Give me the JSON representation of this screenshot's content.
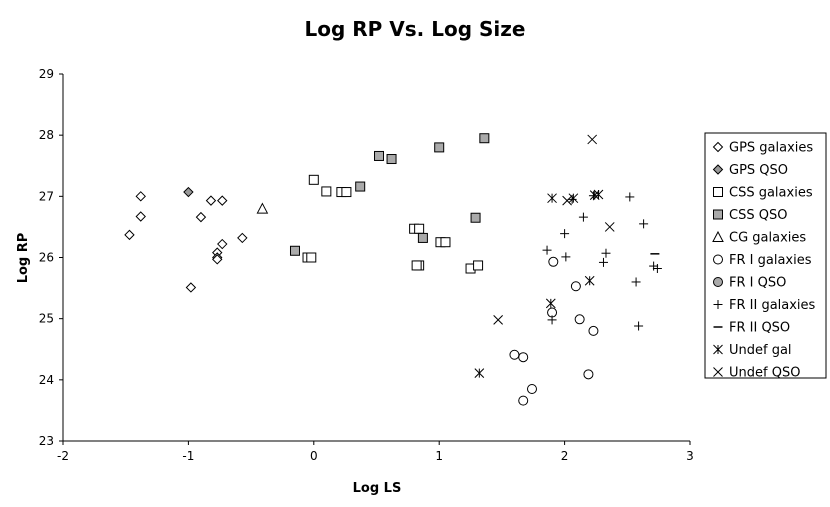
{
  "chart_data": {
    "type": "scatter",
    "title": "Log RP Vs. Log Size",
    "xlabel": "Log LS",
    "ylabel": "Log RP",
    "xlim": [
      -2,
      3
    ],
    "ylim": [
      23,
      29
    ],
    "xticks": [
      -2,
      -1,
      0,
      1,
      2,
      3
    ],
    "yticks": [
      23,
      24,
      25,
      26,
      27,
      28,
      29
    ],
    "grid": false,
    "legend_position": "right",
    "series": [
      {
        "name": "GPS galaxies",
        "marker": "diamond-open",
        "color": "#000000",
        "points": [
          [
            -1.47,
            26.37
          ],
          [
            -1.38,
            27.0
          ],
          [
            -1.38,
            26.67
          ],
          [
            -0.9,
            26.66
          ],
          [
            -0.82,
            26.93
          ],
          [
            -0.73,
            26.93
          ],
          [
            -0.73,
            26.22
          ],
          [
            -0.77,
            26.08
          ],
          [
            -0.77,
            26.0
          ],
          [
            -0.77,
            25.97
          ],
          [
            -0.57,
            26.32
          ],
          [
            -0.98,
            25.51
          ]
        ]
      },
      {
        "name": "GPS QSO",
        "marker": "diamond-filled",
        "color": "#999999",
        "points": [
          [
            -1.0,
            27.07
          ]
        ]
      },
      {
        "name": "CSS galaxies",
        "marker": "square-open",
        "color": "#000000",
        "points": [
          [
            0.0,
            27.27
          ],
          [
            0.1,
            27.08
          ],
          [
            0.22,
            27.07
          ],
          [
            0.26,
            27.07
          ],
          [
            -0.05,
            26.0
          ],
          [
            -0.02,
            26.0
          ],
          [
            0.8,
            26.47
          ],
          [
            0.84,
            26.47
          ],
          [
            0.84,
            25.87
          ],
          [
            0.82,
            25.87
          ],
          [
            1.01,
            26.25
          ],
          [
            1.05,
            26.25
          ],
          [
            1.25,
            25.82
          ],
          [
            1.31,
            25.87
          ]
        ]
      },
      {
        "name": "CSS QSO",
        "marker": "square-filled",
        "color": "#aaaaaa",
        "points": [
          [
            0.37,
            27.16
          ],
          [
            0.52,
            27.66
          ],
          [
            0.62,
            27.61
          ],
          [
            1.0,
            27.8
          ],
          [
            1.36,
            27.95
          ],
          [
            1.29,
            26.65
          ],
          [
            0.87,
            26.32
          ],
          [
            -0.15,
            26.11
          ]
        ]
      },
      {
        "name": "CG galaxies",
        "marker": "triangle-open",
        "color": "#000000",
        "points": [
          [
            -0.41,
            26.8
          ]
        ]
      },
      {
        "name": "FR I galaxies",
        "marker": "circle-open",
        "color": "#000000",
        "points": [
          [
            1.91,
            25.93
          ],
          [
            2.09,
            25.53
          ],
          [
            1.9,
            25.1
          ],
          [
            2.12,
            24.99
          ],
          [
            2.23,
            24.8
          ],
          [
            1.6,
            24.41
          ],
          [
            1.67,
            24.37
          ],
          [
            1.74,
            23.85
          ],
          [
            1.67,
            23.66
          ],
          [
            2.19,
            24.09
          ]
        ]
      },
      {
        "name": "FR I QSO",
        "marker": "circle-filled",
        "color": "#aaaaaa",
        "points": []
      },
      {
        "name": "FR II galaxies",
        "marker": "plus",
        "color": "#000000",
        "points": [
          [
            1.86,
            26.12
          ],
          [
            2.0,
            26.39
          ],
          [
            2.01,
            26.01
          ],
          [
            2.06,
            26.95
          ],
          [
            2.15,
            26.66
          ],
          [
            2.31,
            25.92
          ],
          [
            2.33,
            26.07
          ],
          [
            2.52,
            26.99
          ],
          [
            2.57,
            25.6
          ],
          [
            2.63,
            26.55
          ],
          [
            2.71,
            25.86
          ],
          [
            2.74,
            25.82
          ],
          [
            2.59,
            24.88
          ],
          [
            1.9,
            24.98
          ],
          [
            2.23,
            27.01
          ]
        ]
      },
      {
        "name": "FR II QSO",
        "marker": "dash",
        "color": "#000000",
        "points": [
          [
            2.72,
            26.06
          ]
        ]
      },
      {
        "name": "Undef gal",
        "marker": "asterisk",
        "color": "#000000",
        "points": [
          [
            1.9,
            26.97
          ],
          [
            2.07,
            26.97
          ],
          [
            2.24,
            27.02
          ],
          [
            2.27,
            27.03
          ],
          [
            1.89,
            25.25
          ],
          [
            2.2,
            25.62
          ],
          [
            1.32,
            24.11
          ]
        ]
      },
      {
        "name": "Undef QSO",
        "marker": "x",
        "color": "#000000",
        "points": [
          [
            2.22,
            27.93
          ],
          [
            2.02,
            26.93
          ],
          [
            2.36,
            26.5
          ],
          [
            1.47,
            24.98
          ]
        ]
      }
    ]
  }
}
